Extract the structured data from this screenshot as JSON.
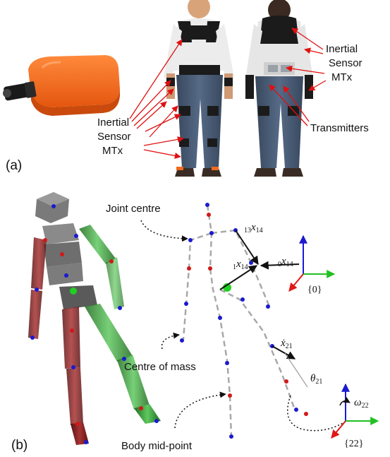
{
  "panels": {
    "a": "(a)",
    "b": "(b)"
  },
  "panel_a": {
    "inertial_sensor_left": [
      "Inertial",
      "Sensor",
      "MTx"
    ],
    "inertial_sensor_right": [
      "Inertial",
      "Sensor",
      "MTx"
    ],
    "transmitters": "Transmitters"
  },
  "panel_b": {
    "joint_centre": "Joint centre",
    "centre_of_mass": "Centre of mass",
    "body_mid_point": "Body mid-point",
    "vec_13_14": {
      "pre": "13",
      "sym": "x",
      "sub": "14"
    },
    "vec_1_14": {
      "pre": "1",
      "sym": "x",
      "sub": "14"
    },
    "vec_0_14": {
      "pre": "0",
      "sym": "x",
      "sub": "14"
    },
    "xdot_21": {
      "sym": "ẋ",
      "sub": "21"
    },
    "theta_21": {
      "sym": "θ",
      "sub": "21"
    },
    "omega_22": {
      "sym": "ω",
      "sub": "22"
    },
    "frame_0": "{0}",
    "frame_22": "{22}"
  },
  "colors": {
    "arrow_red": "#e01010",
    "sensor_orange": "#f0641e",
    "axis_blue": "#1a1ad0",
    "axis_green": "#22c022",
    "axis_red": "#e01818"
  }
}
